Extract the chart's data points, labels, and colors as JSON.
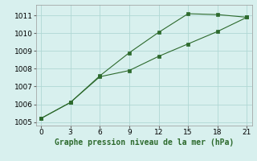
{
  "line1_x": [
    0,
    3,
    6,
    9,
    12,
    15,
    18,
    21
  ],
  "line1_y": [
    1005.2,
    1006.1,
    1007.6,
    1008.9,
    1010.05,
    1011.1,
    1011.05,
    1010.9
  ],
  "line2_x": [
    0,
    3,
    6,
    9,
    12,
    15,
    18,
    21
  ],
  "line2_y": [
    1005.2,
    1006.1,
    1007.55,
    1007.9,
    1008.7,
    1009.4,
    1010.1,
    1010.9
  ],
  "line_color": "#2d6a2d",
  "marker": "s",
  "marker_size": 2.5,
  "xlabel": "Graphe pression niveau de la mer (hPa)",
  "xlim": [
    -0.5,
    21.5
  ],
  "ylim": [
    1004.8,
    1011.6
  ],
  "xticks": [
    0,
    3,
    6,
    9,
    12,
    15,
    18,
    21
  ],
  "yticks": [
    1005,
    1006,
    1007,
    1008,
    1009,
    1010,
    1011
  ],
  "bg_color": "#d8f0ee",
  "grid_color": "#b0d8d4",
  "xlabel_fontsize": 7.0,
  "tick_fontsize": 6.5,
  "linewidth": 0.8
}
